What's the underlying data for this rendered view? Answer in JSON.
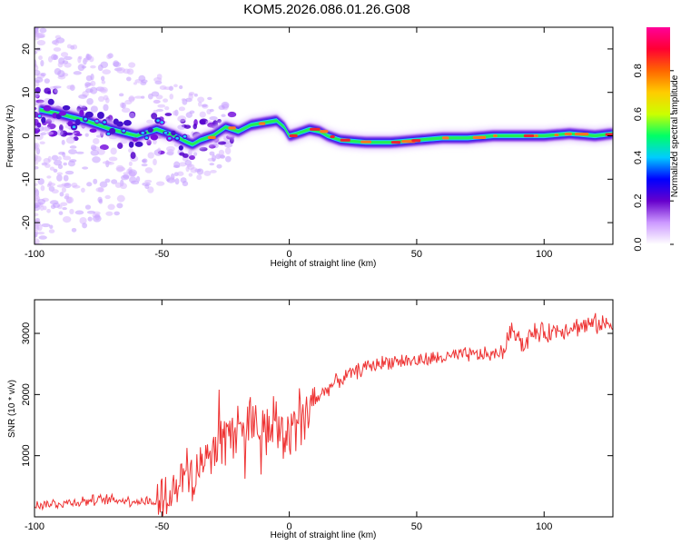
{
  "title": "KOM5.2026.086.01.26.G08",
  "colors": {
    "accent": "#ee3333",
    "axis": "#000000"
  },
  "chart_data": [
    {
      "type": "heatmap",
      "xlabel": "Height of straight line (km)",
      "ylabel": "Frequency (Hz)",
      "xlim": [
        -100,
        127
      ],
      "ylim": [
        -25,
        25
      ],
      "xticks": [
        -100,
        -50,
        0,
        50,
        100
      ],
      "xtick_labels": [
        "-100",
        "-50",
        "0",
        "50",
        "100"
      ],
      "yticks": [
        -20,
        -10,
        0,
        10,
        20
      ],
      "ytick_labels": [
        "-20",
        "-10",
        "0",
        "10",
        "20"
      ],
      "ridge": {
        "x": [
          -98,
          -90,
          -80,
          -70,
          -60,
          -52,
          -45,
          -40,
          -38,
          -35,
          -30,
          -25,
          -20,
          -15,
          -10,
          -5,
          -2,
          0,
          3,
          8,
          12,
          15,
          20,
          30,
          40,
          50,
          60,
          70,
          80,
          90,
          100,
          110,
          120,
          127
        ],
        "y": [
          6,
          5,
          3.5,
          1.5,
          0,
          1.5,
          0,
          -1.5,
          -2,
          -1,
          0,
          2,
          1,
          2.5,
          3,
          3.5,
          2,
          0,
          0.5,
          1.5,
          1,
          0,
          -1,
          -1.5,
          -1.5,
          -1,
          -0.5,
          -0.5,
          0,
          0,
          0,
          0.5,
          0,
          0.5
        ]
      },
      "colorbar": {
        "label": "Normalized spectral amplitude",
        "range": [
          0,
          1
        ],
        "ticks": [
          0.0,
          0.2,
          0.4,
          0.6,
          0.8
        ],
        "tick_labels": [
          "0.0",
          "0.2",
          "0.4",
          "0.6",
          "0.8"
        ],
        "colors": [
          "#ffffff",
          "#cc99ff",
          "#6600cc",
          "#0000ff",
          "#00ccff",
          "#00ff66",
          "#ccff00",
          "#ffcc00",
          "#ff6600",
          "#ff0033",
          "#ff0099"
        ]
      }
    },
    {
      "type": "line",
      "xlabel": "Height of straight line (km)",
      "ylabel": "SNR (10 * v/v)",
      "xlim": [
        -100,
        127
      ],
      "ylim": [
        0,
        3550
      ],
      "xticks": [
        -100,
        -50,
        0,
        50,
        100
      ],
      "xtick_labels": [
        "-100",
        "-50",
        "0",
        "50",
        "100"
      ],
      "yticks": [
        1000,
        2000,
        3000
      ],
      "ytick_labels": [
        "1000",
        "2000",
        "3000"
      ],
      "series": [
        {
          "name": "SNR",
          "x": [
            -100,
            -90,
            -80,
            -70,
            -60,
            -52,
            -50,
            -45,
            -40,
            -35,
            -30,
            -25,
            -20,
            -15,
            -10,
            -5,
            0,
            5,
            10,
            15,
            20,
            25,
            30,
            40,
            50,
            60,
            70,
            80,
            84,
            86,
            88,
            90,
            92,
            94,
            96,
            100,
            110,
            120,
            127
          ],
          "values": [
            200,
            220,
            260,
            280,
            260,
            250,
            300,
            450,
            650,
            850,
            1100,
            1300,
            1500,
            1550,
            1500,
            1400,
            1300,
            1700,
            1900,
            2100,
            2250,
            2350,
            2450,
            2550,
            2550,
            2600,
            2650,
            2650,
            2700,
            2950,
            3050,
            3000,
            2750,
            2950,
            3000,
            3000,
            3100,
            3150,
            3150
          ]
        }
      ]
    }
  ]
}
